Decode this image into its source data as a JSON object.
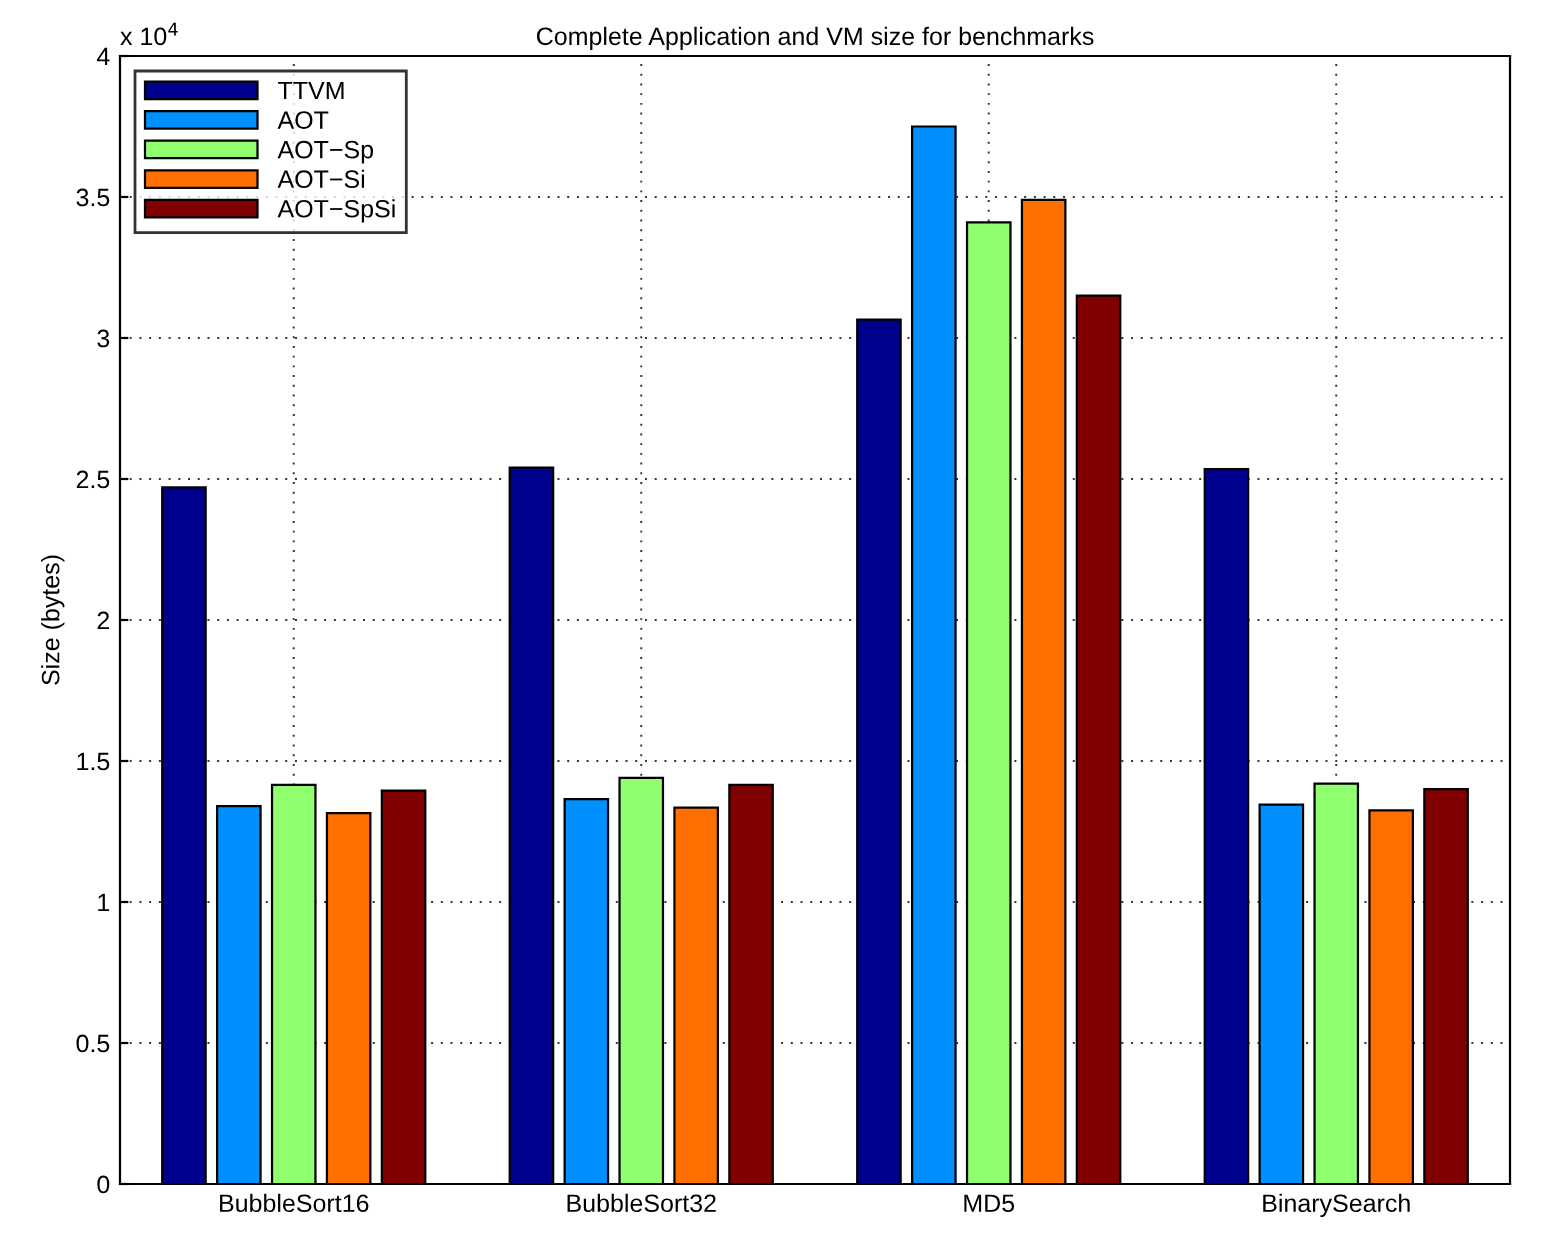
{
  "chart_data": {
    "type": "bar",
    "title": "Complete Application and VM size for benchmarks",
    "ylabel": "Size (bytes)",
    "categories": [
      "BubbleSort16",
      "BubbleSort32",
      "MD5",
      "BinarySearch"
    ],
    "series": [
      {
        "name": "TTVM",
        "color": "#00008f",
        "values": [
          2.47,
          2.54,
          3.065,
          2.535
        ]
      },
      {
        "name": "AOT",
        "color": "#008fff",
        "values": [
          1.34,
          1.365,
          3.75,
          1.345
        ]
      },
      {
        "name": "AOT−Sp",
        "color": "#8fff70",
        "values": [
          1.415,
          1.44,
          3.41,
          1.42
        ]
      },
      {
        "name": "AOT−Si",
        "color": "#ff7000",
        "values": [
          1.315,
          1.335,
          3.49,
          1.325
        ]
      },
      {
        "name": "AOT−SpSi",
        "color": "#800000",
        "values": [
          1.395,
          1.415,
          3.15,
          1.4
        ]
      }
    ],
    "ylim": [
      0,
      4
    ],
    "yticks": [
      0,
      0.5,
      1,
      1.5,
      2,
      2.5,
      3,
      3.5,
      4
    ],
    "annotations": [
      "x 10$^{4}$"
    ],
    "grid": true,
    "legend": "top left"
  }
}
